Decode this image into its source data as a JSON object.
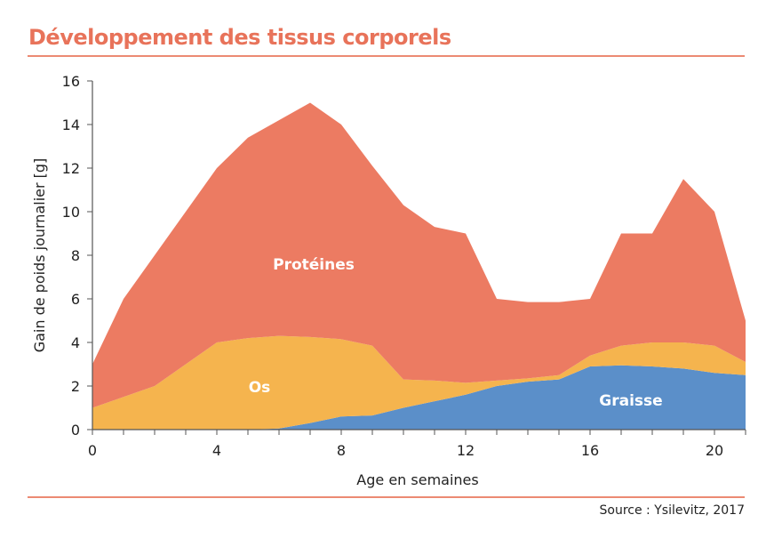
{
  "chart_data": {
    "type": "area",
    "stacked": true,
    "title": "Développement des tissus corporels",
    "xlabel": "Age en semaines",
    "ylabel": "Gain de poids journalier [g]",
    "source": "Source : Ysilevitz, 2017",
    "xlim": [
      0,
      21
    ],
    "ylim": [
      0,
      16
    ],
    "xticks": [
      0,
      4,
      8,
      12,
      16,
      20
    ],
    "yticks": [
      0,
      2,
      4,
      6,
      8,
      10,
      12,
      14,
      16
    ],
    "grid": false,
    "legend": "inline labels",
    "x": [
      0,
      1,
      2,
      3,
      4,
      5,
      6,
      7,
      8,
      9,
      10,
      11,
      12,
      13,
      14,
      15,
      16,
      17,
      18,
      19,
      20,
      21
    ],
    "series": [
      {
        "name": "Graisse",
        "color": "#5b8fc9",
        "values": [
          0,
          0,
          0,
          0,
          0,
          0,
          0.05,
          0.3,
          0.6,
          0.65,
          1.0,
          1.3,
          1.6,
          2.0,
          2.2,
          2.3,
          2.9,
          2.95,
          2.9,
          2.8,
          2.6,
          2.5
        ]
      },
      {
        "name": "Os",
        "color": "#f5b44e",
        "values": [
          1.0,
          1.5,
          2.0,
          3.0,
          4.0,
          4.2,
          4.25,
          3.95,
          3.55,
          3.2,
          1.3,
          0.95,
          0.55,
          0.25,
          0.15,
          0.2,
          0.5,
          0.9,
          1.1,
          1.2,
          1.25,
          0.6
        ]
      },
      {
        "name": "Protéines",
        "color": "#ec7b62",
        "values": [
          2.0,
          4.5,
          6.0,
          7.0,
          8.0,
          9.2,
          9.9,
          10.75,
          9.85,
          8.25,
          8.0,
          7.05,
          6.85,
          3.75,
          3.5,
          3.35,
          2.6,
          5.15,
          5.0,
          7.5,
          6.15,
          1.9
        ]
      }
    ]
  }
}
